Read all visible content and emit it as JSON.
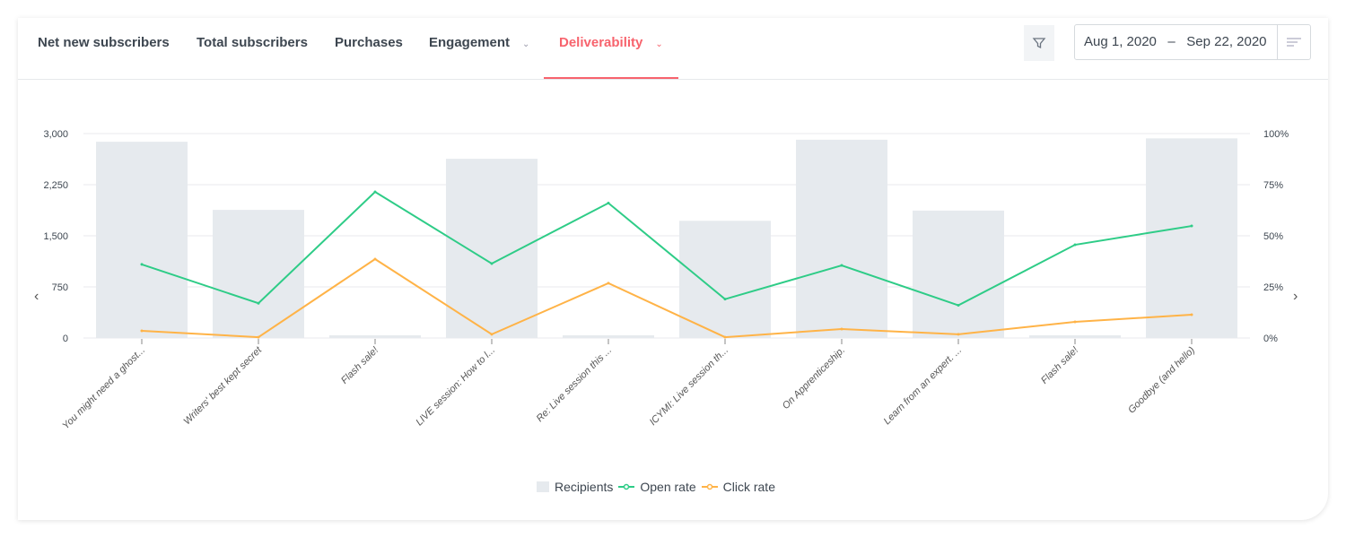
{
  "tabs": [
    {
      "label": "Net new subscribers"
    },
    {
      "label": "Total subscribers"
    },
    {
      "label": "Purchases"
    },
    {
      "label": "Engagement",
      "dropdown": true
    },
    {
      "label": "Deliverability",
      "dropdown": true,
      "active": true
    }
  ],
  "date_range": {
    "start": "Aug 1, 2020",
    "separator": "–",
    "end": "Sep 22, 2020"
  },
  "icons": {
    "filter": "filter-icon",
    "menu": "menu-lines-icon",
    "prev": "chevron-left-icon",
    "next": "chevron-right-icon"
  },
  "colors": {
    "accent": "#f7636d",
    "recipients": "#e6eaee",
    "open_rate": "#2ecc87",
    "click_rate": "#ffb347"
  },
  "chart_data": {
    "type": "bar+line",
    "categories": [
      "You might need a ghost...",
      "Writers' best kept secret",
      "Flash sale!",
      "LIVE session: How to l...",
      "Re: Live session this ...",
      "ICYMI: Live session th...",
      "On Apprenticeship.",
      "Learn from an expert. ...",
      "Flash sale!",
      "Goodbye (and hello)"
    ],
    "left_axis": {
      "ticks": [
        "0",
        "750",
        "1,500",
        "2,250",
        "3,000"
      ],
      "range": [
        0,
        3000
      ]
    },
    "right_axis": {
      "ticks": [
        "0%",
        "25%",
        "50%",
        "75%",
        "100%"
      ],
      "range": [
        0,
        100
      ]
    },
    "grid": true,
    "legend_position": "bottom",
    "series": [
      {
        "name": "Recipients",
        "type": "bar",
        "axis": "left",
        "values": [
          2880,
          1880,
          40,
          2630,
          40,
          1720,
          2910,
          1870,
          40,
          2930
        ]
      },
      {
        "name": "Open rate",
        "type": "line",
        "axis": "right",
        "values": [
          36,
          17,
          71.5,
          36.4,
          66,
          19,
          35.5,
          16,
          45.6,
          54.8
        ]
      },
      {
        "name": "Click rate",
        "type": "line",
        "axis": "right",
        "values": [
          3.5,
          0.4,
          38.6,
          1.8,
          26.8,
          0.4,
          4.4,
          1.8,
          7.9,
          11.4
        ]
      }
    ]
  }
}
